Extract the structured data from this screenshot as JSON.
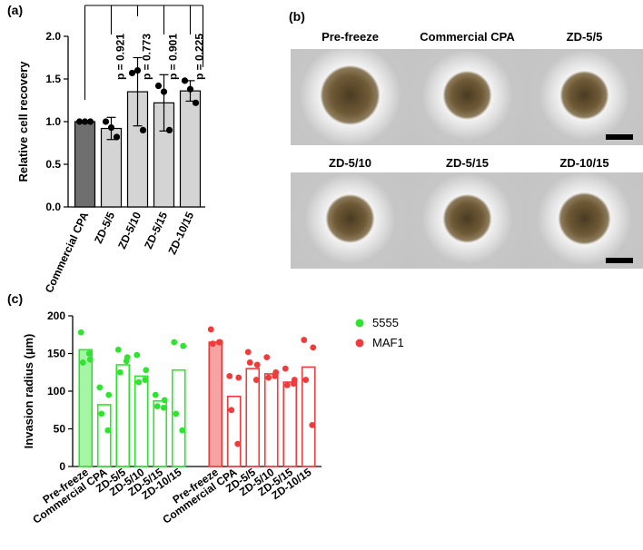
{
  "panel_labels": {
    "a": "(a)",
    "b": "(b)",
    "c": "(c)"
  },
  "colors": {
    "dark_bar": "#6e6e6e",
    "light_bar": "#d4d4d4",
    "green": "#2ee42e",
    "green_fill": "#a6f5a6",
    "red": "#ee3b3b",
    "red_fill": "#f6a3a3",
    "photo_bg": "#c9c9c9"
  },
  "panel_b": {
    "labels": [
      "Pre-freeze",
      "Commercial CPA",
      "ZD-5/5",
      "ZD-5/10",
      "ZD-5/15",
      "ZD-10/15"
    ]
  },
  "chart_data": [
    {
      "type": "bar",
      "ylabel": "Relative cell recovery",
      "ylim": [
        0,
        2.0
      ],
      "yticks": [
        "0.0",
        "0.5",
        "1.0",
        "1.5",
        "2.0"
      ],
      "categories": [
        "Commercial CPA",
        "ZD-5/5",
        "ZD-5/10",
        "ZD-5/15",
        "ZD-10/15"
      ],
      "values": [
        1.0,
        0.92,
        1.35,
        1.22,
        1.36
      ],
      "error": [
        0.0,
        0.13,
        0.4,
        0.33,
        0.12
      ],
      "points": [
        [
          1.0,
          1.0,
          1.0
        ],
        [
          1.0,
          0.93,
          0.82
        ],
        [
          1.57,
          1.6,
          0.9
        ],
        [
          1.42,
          1.35,
          0.9
        ],
        [
          1.48,
          1.38,
          1.22
        ]
      ],
      "comparisons": [
        "p = 0.921",
        "p = 0.773",
        "p = 0.901",
        "p = 0.225"
      ]
    },
    {
      "type": "bar",
      "ylabel": "Invasion radius (µm)",
      "ylim": [
        0,
        200
      ],
      "yticks": [
        "0",
        "50",
        "100",
        "150",
        "200"
      ],
      "categories": [
        "Pre-freeze",
        "Commercial CPA",
        "ZD-5/5",
        "ZD-5/10",
        "ZD-5/15",
        "ZD-10/15"
      ],
      "series": [
        {
          "name": "5555",
          "values": [
            155,
            82,
            135,
            120,
            87,
            128
          ],
          "points": [
            [
              178,
              142,
              138,
              150
            ],
            [
              105,
              95,
              70,
              48
            ],
            [
              155,
              145,
              125,
              140
            ],
            [
              148,
              128,
              112,
              115
            ],
            [
              95,
              88,
              80,
              78
            ],
            [
              165,
              160,
              70,
              48
            ]
          ]
        },
        {
          "name": "MAF1",
          "values": [
            165,
            93,
            130,
            123,
            112,
            132
          ],
          "points": [
            [
              182,
              165,
              163,
              165
            ],
            [
              120,
              118,
              75,
              30
            ],
            [
              152,
              135,
              138,
              115
            ],
            [
              145,
              125,
              118,
              120
            ],
            [
              130,
              115,
              108,
              110
            ],
            [
              168,
              158,
              115,
              55
            ]
          ]
        }
      ]
    }
  ]
}
